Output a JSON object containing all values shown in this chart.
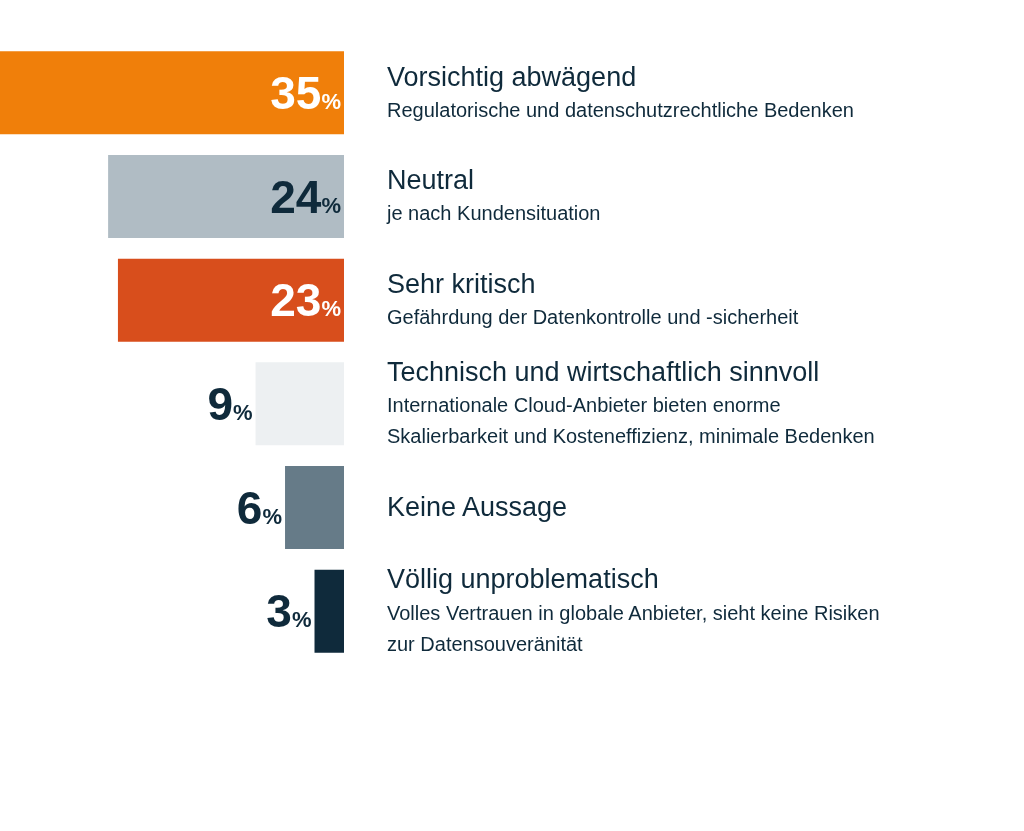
{
  "chart_data": {
    "type": "bar",
    "orientation": "horizontal",
    "categories": [
      "Vorsichtig abwägend\nRegulatorische und datenschutzrechtliche Bedenken",
      "Neutral\nje nach Kundensituation",
      "Sehr kritisch\nGefährdung der Datenkontrolle und -sicherheit",
      "Technisch und wirtschaftlich sinnvoll\nInternationale Cloud-Anbieter bieten enorme\nSkalierbarkeit und Kosteneffizienz, minimale Bedenken",
      "Keine Aussage",
      "Völlig unproblematisch\nVolles Vertrauen in globale Anbieter, sieht keine Risiken\nzur Datensouveränität"
    ],
    "values": [
      35,
      24,
      23,
      9,
      6,
      3
    ],
    "colors": [
      "#f07f0a",
      "#b0bcc4",
      "#d84e1c",
      "#edf0f2",
      "#667b88",
      "#0f2a3b"
    ],
    "value_labels": [
      "35%",
      "24%",
      "23%",
      "9%",
      "6%",
      "3%"
    ],
    "legend": false
  }
}
